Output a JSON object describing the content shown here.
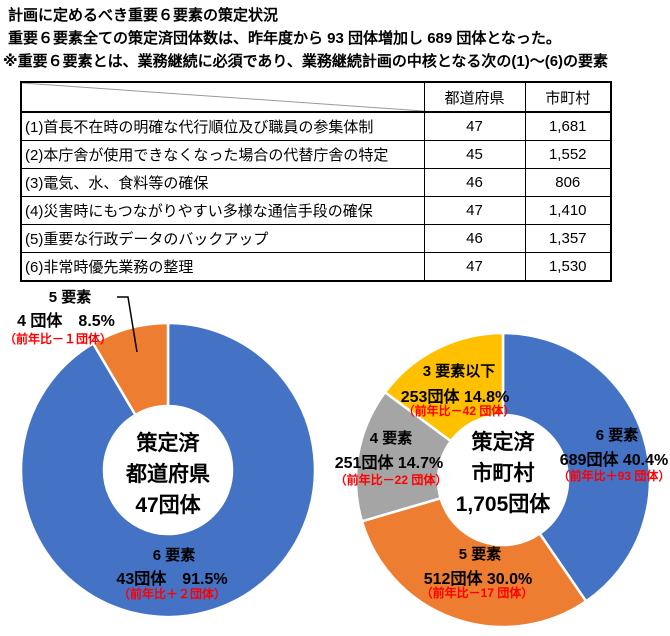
{
  "page": {
    "background": "#FFFFFF",
    "title_lines": [
      "計画に定めるべき重要６要素の策定状況",
      "重要６要素全ての策定済団体数は、昨年度から 93 団体増加し 689 団体となった。",
      "※重要６要素とは、業務継続に必須であり、業務継続計画の中核となる次の(1)～(6)の要素"
    ]
  },
  "colors": {
    "series_blue": "#4472C4",
    "series_orange": "#ED7D31",
    "series_gray": "#A5A5A5",
    "series_yellow": "#FFC000",
    "annotation_red": "#FF0000",
    "text": "#000000",
    "table_border": "#000000"
  },
  "table": {
    "headers": [
      "",
      "都道府県",
      "市町村"
    ],
    "rows": [
      {
        "label": "(1)首長不在時の明確な代行順位及び職員の参集体制",
        "pref": "47",
        "muni": "1,681"
      },
      {
        "label": "(2)本庁舎が使用できなくなった場合の代替庁舎の特定",
        "pref": "45",
        "muni": "1,552"
      },
      {
        "label": "(3)電気、水、食料等の確保",
        "pref": "46",
        "muni": "806"
      },
      {
        "label": "(4)災害時にもつながりやすい多様な通信手段の確保",
        "pref": "47",
        "muni": "1,410"
      },
      {
        "label": "(5)重要な行政データのバックアップ",
        "pref": "46",
        "muni": "1,357"
      },
      {
        "label": "(6)非常時優先業務の整理",
        "pref": "47",
        "muni": "1,530"
      }
    ]
  },
  "chart_data": [
    {
      "type": "pie",
      "subtype": "donut",
      "title": "策定済 都道府県 47団体",
      "center_lines": [
        "策定済",
        "都道府県",
        "47団体"
      ],
      "total": 47,
      "legend_position": "none",
      "segments": [
        {
          "name": "6 要素",
          "count": 43,
          "percent": 91.5,
          "count_label": "43団体　91.5%",
          "yoy_label": "（前年比＋２団体）",
          "color": "#4472C4"
        },
        {
          "name": "5 要素",
          "count": 4,
          "percent": 8.5,
          "count_label": "4 団体　8.5%",
          "yoy_label": "（前年比－１団体）",
          "color": "#ED7D31"
        }
      ]
    },
    {
      "type": "pie",
      "subtype": "donut",
      "title": "策定済 市町村 1,705団体",
      "center_lines": [
        "策定済",
        "市町村",
        "1,705団体"
      ],
      "total": 1705,
      "legend_position": "none",
      "segments": [
        {
          "name": "6 要素",
          "count": 689,
          "percent": 40.4,
          "count_label": "689団体 40.4%",
          "yoy_label": "（前年比＋93 団体）",
          "color": "#4472C4"
        },
        {
          "name": "5 要素",
          "count": 512,
          "percent": 30.0,
          "count_label": "512団体 30.0%",
          "yoy_label": "（前年比－17 団体）",
          "color": "#ED7D31"
        },
        {
          "name": "4 要素",
          "count": 251,
          "percent": 14.7,
          "count_label": "251団体 14.7%",
          "yoy_label": "（前年比－22 団体）",
          "color": "#A5A5A5"
        },
        {
          "name": "3 要素以下",
          "count": 253,
          "percent": 14.8,
          "count_label": "253団体 14.8%",
          "yoy_label": "（前年比－42 団体）",
          "color": "#FFC000"
        }
      ]
    }
  ]
}
